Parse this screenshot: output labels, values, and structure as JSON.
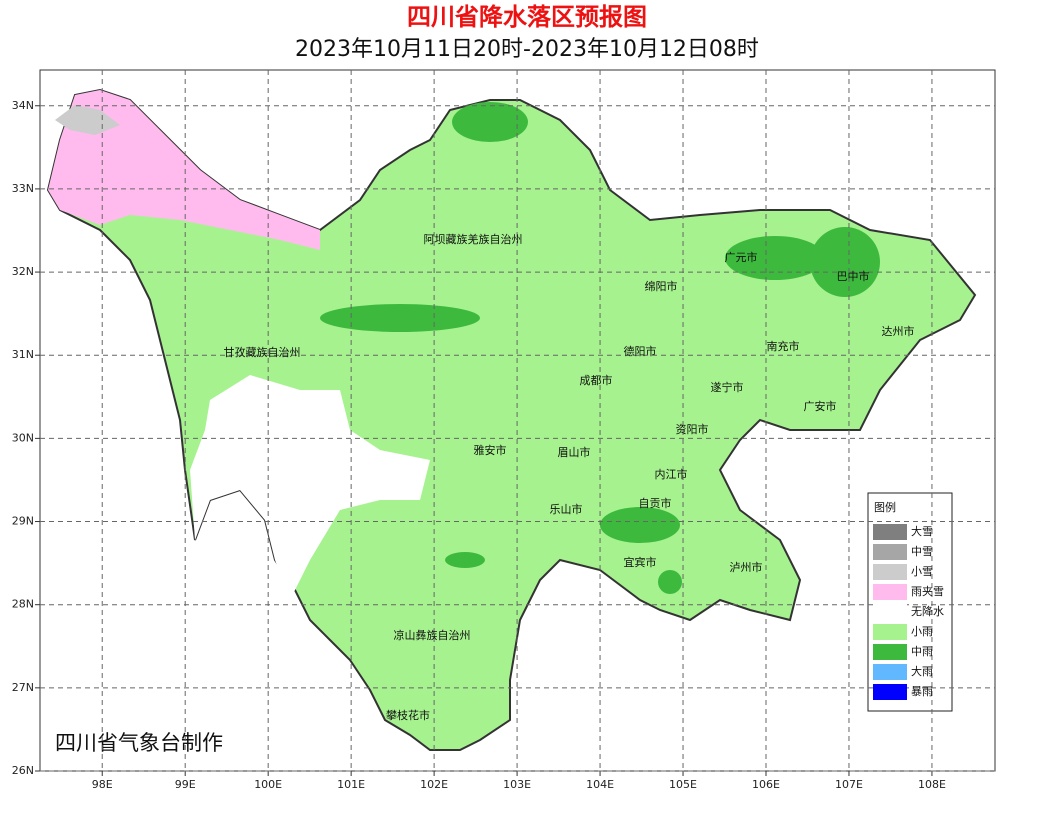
{
  "title": "四川省降水落区预报图",
  "subtitle": "2023年10月11日20时-2023年10月12日08时",
  "map": {
    "xlim": [
      97.25,
      108.76
    ],
    "ylim": [
      26,
      34.43
    ],
    "xticks": [
      {
        "value": 98,
        "label": "98E"
      },
      {
        "value": 99,
        "label": "99E"
      },
      {
        "value": 100,
        "label": "100E"
      },
      {
        "value": 101,
        "label": "101E"
      },
      {
        "value": 102,
        "label": "102E"
      },
      {
        "value": 103,
        "label": "103E"
      },
      {
        "value": 104,
        "label": "104E"
      },
      {
        "value": 105,
        "label": "105E"
      },
      {
        "value": 106,
        "label": "106E"
      },
      {
        "value": 107,
        "label": "107E"
      },
      {
        "value": 108,
        "label": "108E"
      }
    ],
    "yticks": [
      {
        "value": 26,
        "label": "26N"
      },
      {
        "value": 27,
        "label": "27N"
      },
      {
        "value": 28,
        "label": "28N"
      },
      {
        "value": 29,
        "label": "29N"
      },
      {
        "value": 30,
        "label": "30N"
      },
      {
        "value": 31,
        "label": "31N"
      },
      {
        "value": 32,
        "label": "32N"
      },
      {
        "value": 33,
        "label": "33N"
      },
      {
        "value": 34,
        "label": "34N"
      }
    ],
    "grid": true
  },
  "regions": [
    "阿坝藏族羌族自治州",
    "甘孜藏族自治州",
    "绵阳市",
    "广元市",
    "巴中市",
    "达州市",
    "南充市",
    "德阳市",
    "成都市",
    "遂宁市",
    "广安市",
    "资阳市",
    "雅安市",
    "眉山市",
    "内江市",
    "自贡市",
    "乐山市",
    "宜宾市",
    "泸州市",
    "凉山彝族自治州",
    "攀枝花市"
  ],
  "legend": {
    "title": "图例",
    "items": [
      {
        "label": "大雪",
        "color": "#7f7f7f"
      },
      {
        "label": "中雪",
        "color": "#a6a6a6"
      },
      {
        "label": "小雪",
        "color": "#cccccc"
      },
      {
        "label": "雨夹雪",
        "color": "#ffbbee"
      },
      {
        "label": "无降水",
        "color": "#ffffff"
      },
      {
        "label": "小雨",
        "color": "#a6f28f"
      },
      {
        "label": "中雨",
        "color": "#3dba3d"
      },
      {
        "label": "大雨",
        "color": "#61b8ff"
      },
      {
        "label": "暴雨",
        "color": "#0000fe"
      }
    ]
  },
  "credit": "四川省气象台制作"
}
